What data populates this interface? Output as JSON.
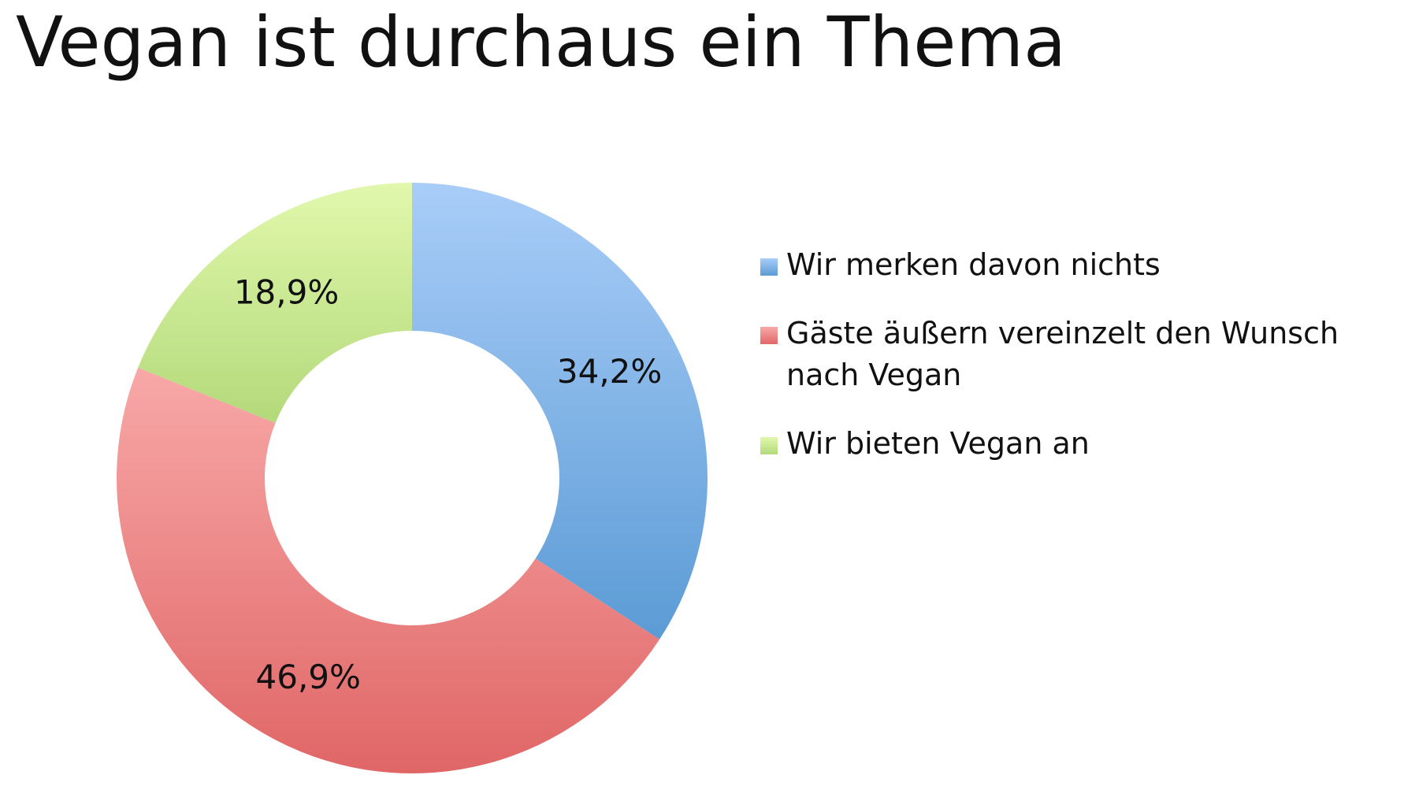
{
  "title": "Vegan ist durchaus ein Thema",
  "chart_data": {
    "type": "pie",
    "variant": "donut",
    "categories": [
      "Wir merken davon nichts",
      "Gäste äußern vereinzelt den Wunsch nach Vegan",
      "Wir bieten Vegan an"
    ],
    "values": [
      34.2,
      46.9,
      18.9
    ],
    "value_labels": [
      "34,2%",
      "46,9%",
      "18,9%"
    ],
    "unit": "%",
    "colors": [
      "#5b9bd5",
      "#e06666",
      "#b3d97a"
    ],
    "gradient_light": [
      "#a9cdf8",
      "#f8a8a8",
      "#e1f8ac"
    ],
    "legend_position": "right",
    "start_angle": "12 o'clock, clockwise"
  }
}
